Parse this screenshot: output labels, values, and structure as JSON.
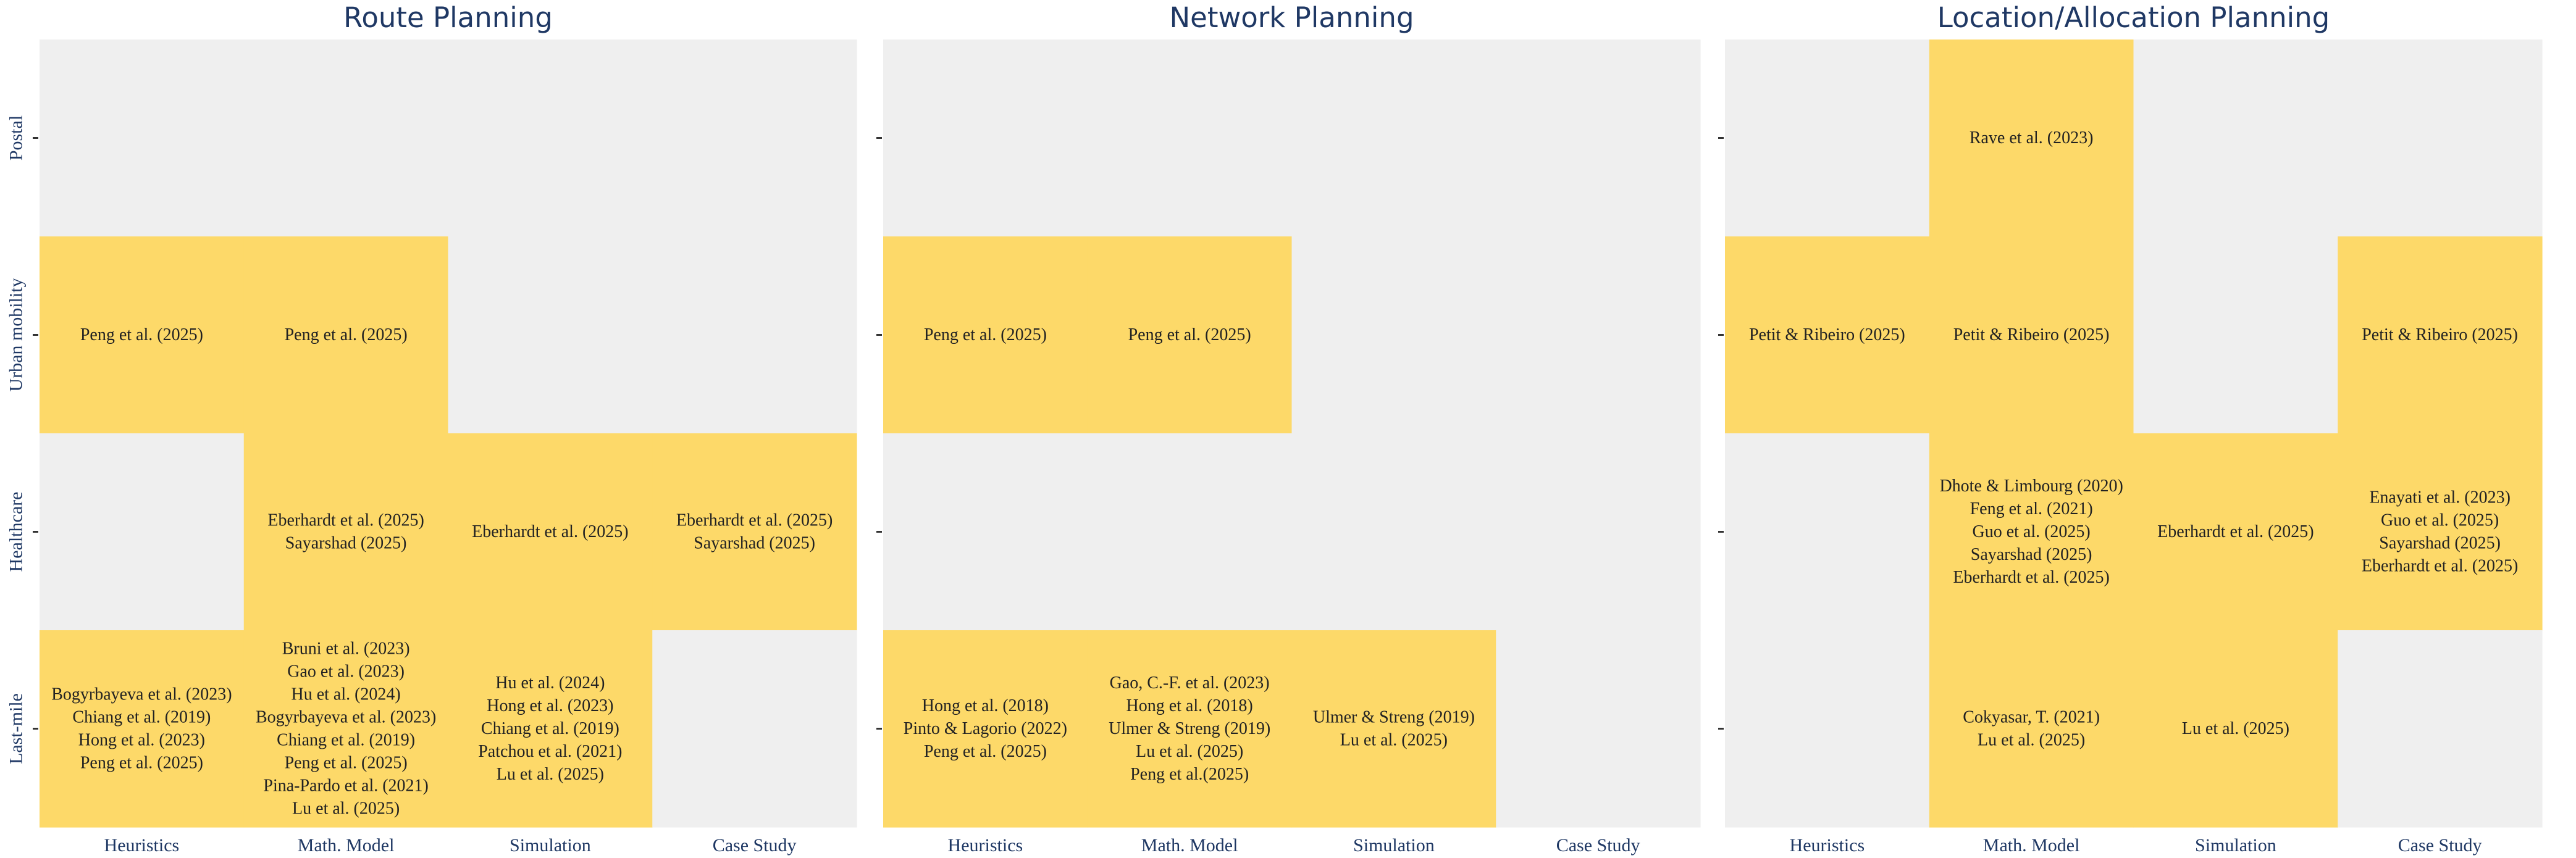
{
  "chart_data": {
    "type": "heatmap",
    "rows": [
      "Postal",
      "Urban mobility",
      "Healthcare",
      "Last-mile"
    ],
    "columns": [
      "Heuristics",
      "Math. Model",
      "Simulation",
      "Case Study"
    ],
    "colors": {
      "empty": "#efefef",
      "filled": "#fdd969",
      "text": "#222222",
      "axis_text": "#1f3864"
    },
    "panels": [
      {
        "title": "Route Planning",
        "cells": [
          [
            [],
            [],
            [],
            []
          ],
          [
            [
              "Peng et al. (2025)"
            ],
            [
              "Peng et al. (2025)"
            ],
            [],
            []
          ],
          [
            [],
            [
              "Eberhardt et al. (2025)",
              "Sayarshad (2025)"
            ],
            [
              "Eberhardt et al. (2025)"
            ],
            [
              "Eberhardt et al. (2025)",
              "Sayarshad (2025)"
            ]
          ],
          [
            [
              "Bogyrbayeva et al. (2023)",
              "Chiang et al. (2019)",
              "Hong et al. (2023)",
              "Peng et al. (2025)"
            ],
            [
              "Bruni et al. (2023)",
              "Gao et al. (2023)",
              "Hu et al. (2024)",
              "Bogyrbayeva et al. (2023)",
              "Chiang et al. (2019)",
              "Peng et al. (2025)",
              "Pina-Pardo et al. (2021)",
              "Lu et al. (2025)"
            ],
            [
              "Hu et al. (2024)",
              "Hong et al. (2023)",
              "Chiang et al. (2019)",
              "Patchou et al. (2021)",
              "Lu et al. (2025)"
            ],
            []
          ]
        ]
      },
      {
        "title": "Network Planning",
        "cells": [
          [
            [],
            [],
            [],
            []
          ],
          [
            [
              "Peng et al. (2025)"
            ],
            [
              "Peng et al. (2025)"
            ],
            [],
            []
          ],
          [
            [],
            [],
            [],
            []
          ],
          [
            [
              "Hong et al. (2018)",
              "Pinto & Lagorio (2022)",
              "Peng et al. (2025)"
            ],
            [
              "Gao, C.-F. et al. (2023)",
              "Hong et al. (2018)",
              "Ulmer & Streng (2019)",
              "Lu et al. (2025)",
              "Peng et al.(2025)"
            ],
            [
              "Ulmer & Streng (2019)",
              "Lu et al. (2025)"
            ],
            []
          ]
        ]
      },
      {
        "title": "Location/Allocation Planning",
        "cells": [
          [
            [],
            [
              "Rave et al. (2023)"
            ],
            [],
            []
          ],
          [
            [
              "Petit & Ribeiro (2025)"
            ],
            [
              "Petit & Ribeiro (2025)"
            ],
            [],
            [
              "Petit & Ribeiro (2025)"
            ]
          ],
          [
            [],
            [
              "Dhote & Limbourg (2020)",
              "Feng et al. (2021)",
              "Guo et al. (2025)",
              "Sayarshad (2025)",
              "Eberhardt et al. (2025)"
            ],
            [
              "Eberhardt et al. (2025)"
            ],
            [
              "Enayati et al. (2023)",
              "Guo et al. (2025)",
              "Sayarshad (2025)",
              "Eberhardt et al. (2025)"
            ]
          ],
          [
            [],
            [
              "Cokyasar, T. (2021)",
              "Lu et al. (2025)"
            ],
            [
              "Lu et al. (2025)"
            ],
            []
          ]
        ]
      }
    ]
  }
}
